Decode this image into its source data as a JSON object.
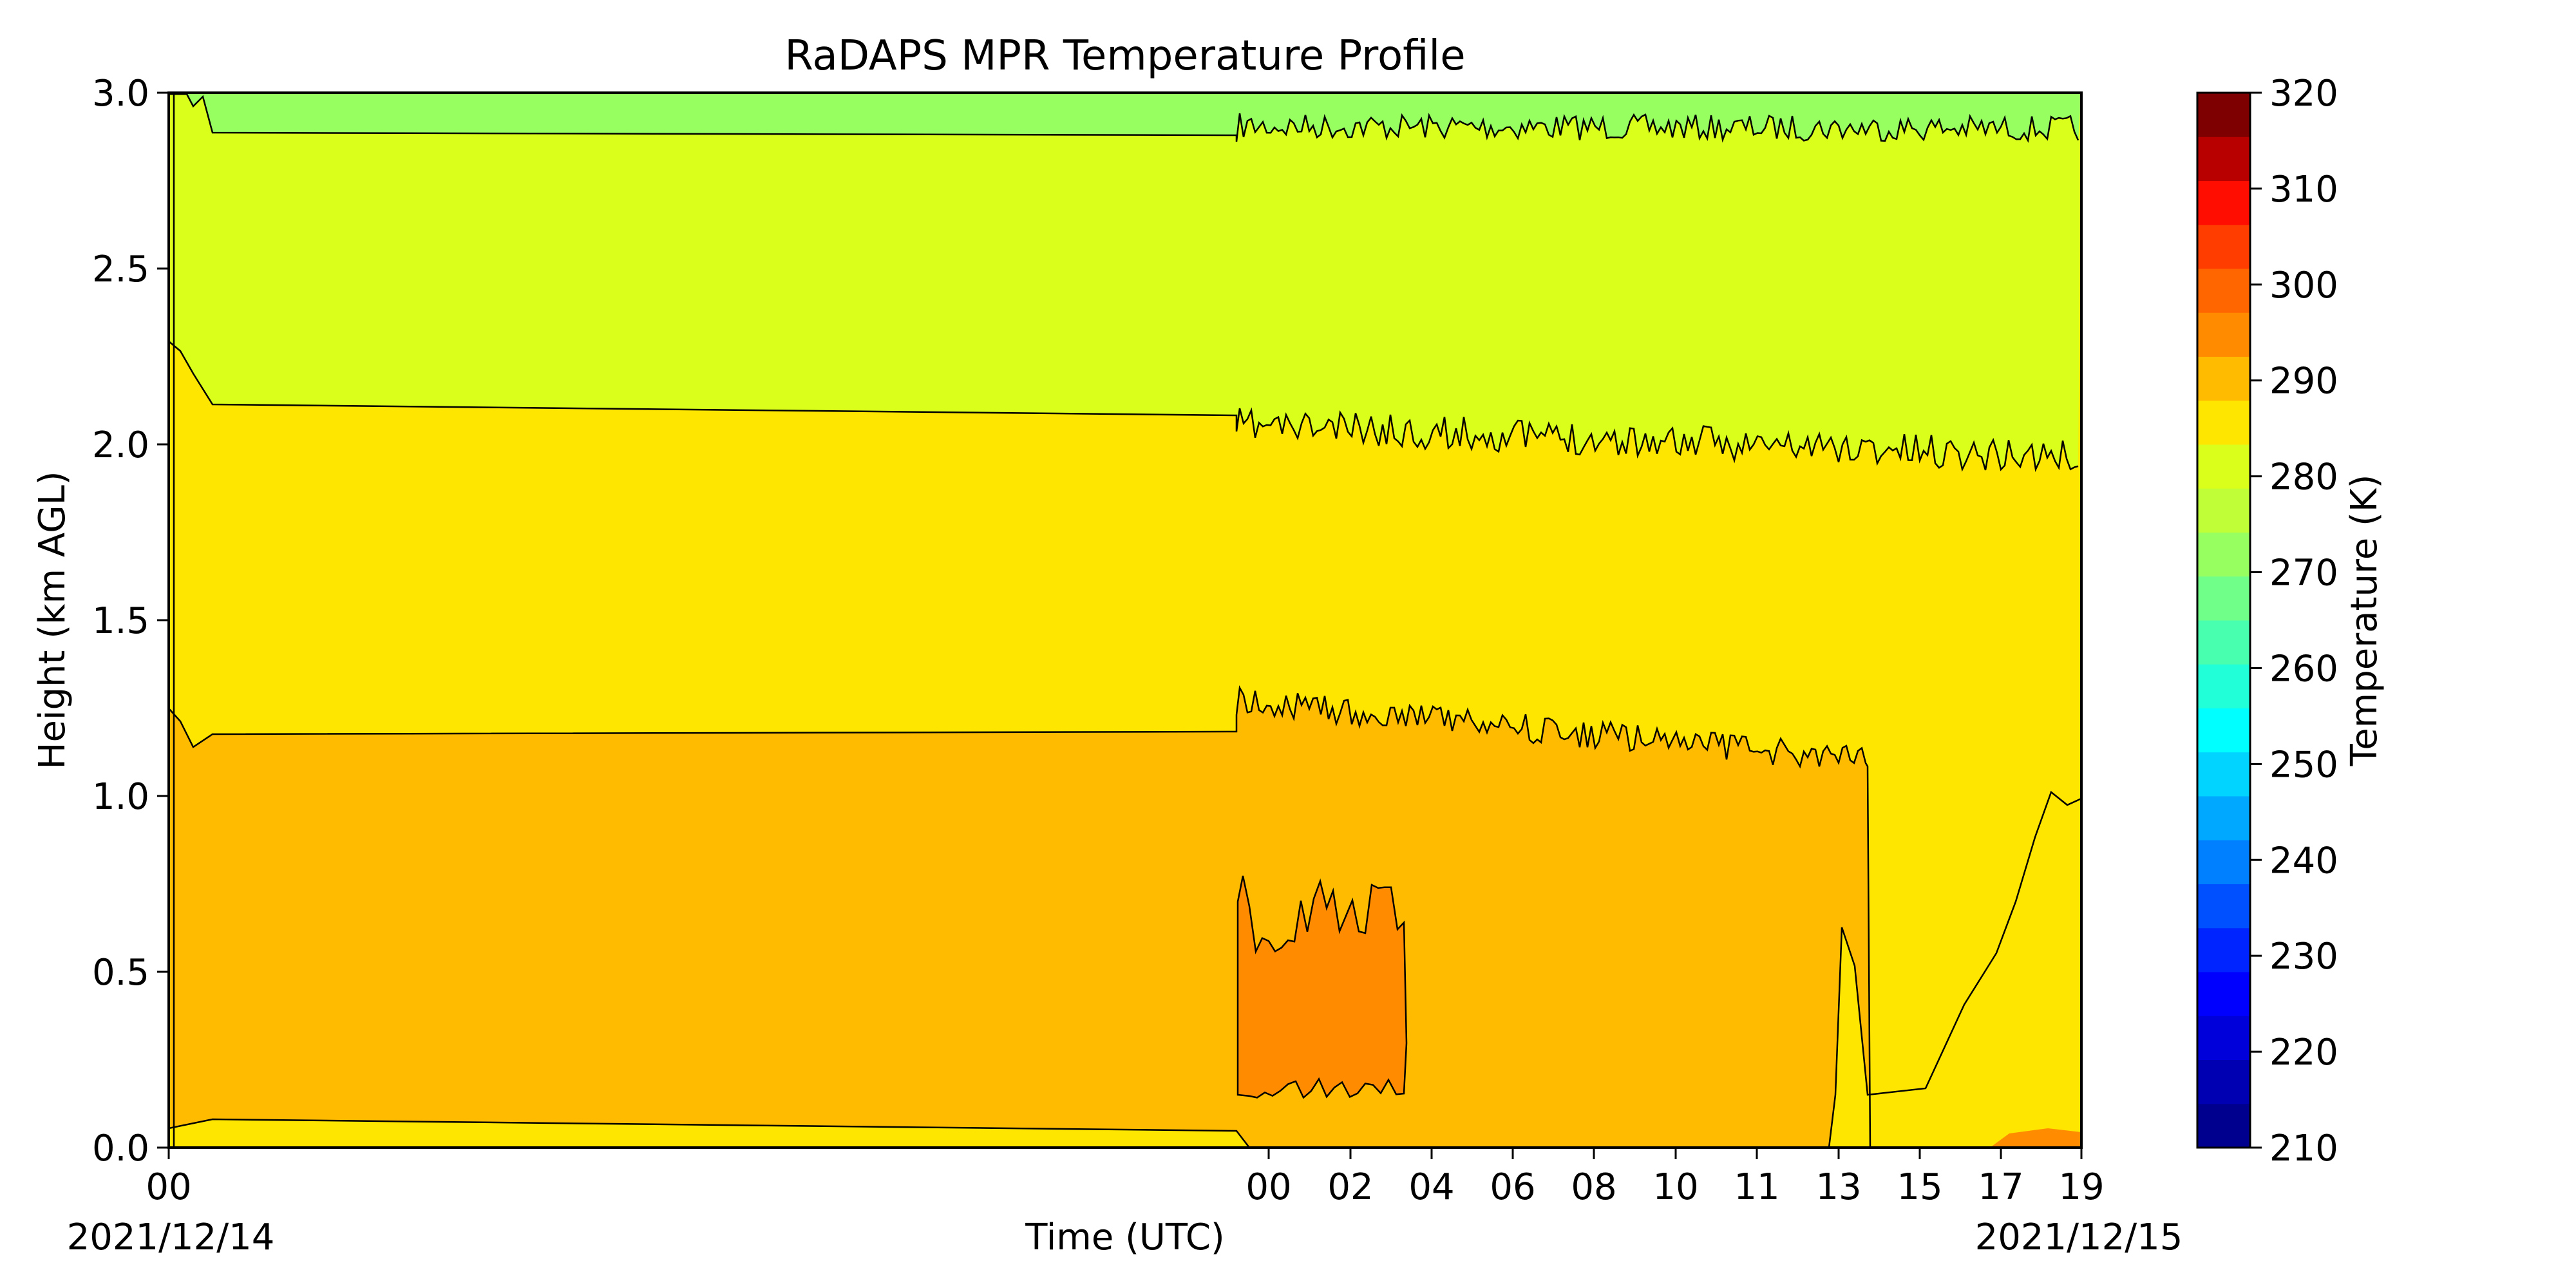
{
  "chart_data": {
    "type": "heatmap",
    "title": "RaDAPS MPR Temperature Profile",
    "xlabel": "Time (UTC)",
    "ylabel": "Height (km AGL)",
    "x_axis": {
      "ticks": [
        {
          "label": "00",
          "day": 0
        },
        {
          "label": "00",
          "day": 1
        },
        {
          "label": "02",
          "day": 1
        },
        {
          "label": "04",
          "day": 1
        },
        {
          "label": "06",
          "day": 1
        },
        {
          "label": "08",
          "day": 1
        },
        {
          "label": "10",
          "day": 1
        },
        {
          "label": "11",
          "day": 1
        },
        {
          "label": "13",
          "day": 1
        },
        {
          "label": "15",
          "day": 1
        },
        {
          "label": "17",
          "day": 1
        },
        {
          "label": "19",
          "day": 1
        }
      ],
      "date_start": "2021/12/14",
      "date_end": "2021/12/15"
    },
    "y_axis": {
      "range": [
        0.0,
        3.0
      ],
      "ticks": [
        "0.0",
        "0.5",
        "1.0",
        "1.5",
        "2.0",
        "2.5",
        "3.0"
      ]
    },
    "colorbar": {
      "label": "Temperature (K)",
      "range": [
        210,
        320
      ],
      "step": 5,
      "tick_labels": [
        "210",
        "220",
        "230",
        "240",
        "250",
        "260",
        "270",
        "280",
        "290",
        "300",
        "310",
        "320"
      ],
      "colors": [
        "#00008f",
        "#0000b3",
        "#0000db",
        "#0000ff",
        "#0024ff",
        "#0050ff",
        "#0080ff",
        "#00a8ff",
        "#00d4ff",
        "#00ffff",
        "#20ffd8",
        "#48ffb0",
        "#70ff88",
        "#98ff60",
        "#c0ff38",
        "#d9ff1a",
        "#ffe600",
        "#ffbb00",
        "#ff8c00",
        "#ff6600",
        "#ff3d00",
        "#ff0d00",
        "#b80000",
        "#7f0000"
      ]
    },
    "temperature_bands_K": [
      {
        "range": [
          275,
          280
        ],
        "color": "#98ff60"
      },
      {
        "range": [
          280,
          285
        ],
        "color": "#d9ff1a"
      },
      {
        "range": [
          285,
          290
        ],
        "color": "#ffe600"
      },
      {
        "range": [
          290,
          295
        ],
        "color": "#ffbb00"
      },
      {
        "range": [
          295,
          300
        ],
        "color": "#ff8c00"
      }
    ]
  }
}
